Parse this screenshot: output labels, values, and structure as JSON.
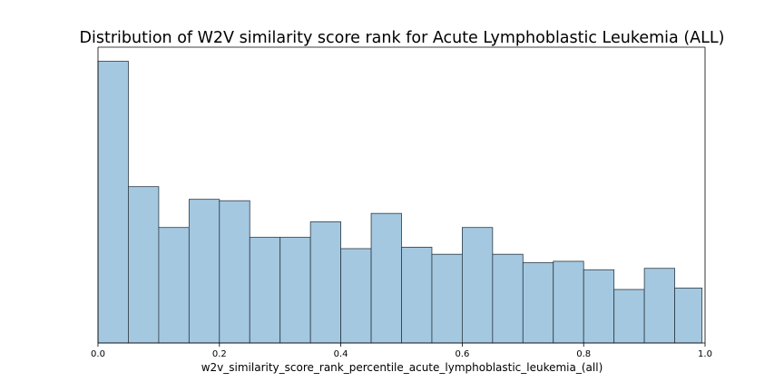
{
  "chart_data": {
    "type": "bar",
    "title": "Distribution of W2V similarity score rank for Acute Lymphoblastic Leukemia (ALL)",
    "xlabel": "w2v_similarity_score_rank_percentile_acute_lymphoblastic_leukemia_(all)",
    "ylabel": "",
    "xlim": [
      0.0,
      1.0
    ],
    "ylim": [
      0,
      1.05
    ],
    "bin_edges": [
      0.0,
      0.05,
      0.1,
      0.15,
      0.2,
      0.25,
      0.3,
      0.35,
      0.4,
      0.45,
      0.5,
      0.55,
      0.6,
      0.65,
      0.7,
      0.75,
      0.8,
      0.85,
      0.9,
      0.95,
      0.995
    ],
    "values": [
      1.0,
      0.555,
      0.41,
      0.51,
      0.505,
      0.375,
      0.375,
      0.43,
      0.335,
      0.46,
      0.34,
      0.315,
      0.41,
      0.315,
      0.285,
      0.29,
      0.26,
      0.19,
      0.265,
      0.195
    ],
    "x_ticks": [
      0.0,
      0.2,
      0.4,
      0.6,
      0.8,
      1.0
    ],
    "x_tick_labels": [
      "0.0",
      "0.2",
      "0.4",
      "0.6",
      "0.8",
      "1.0"
    ],
    "y_ticks_visible": false,
    "grid": false,
    "legend": "none",
    "bar_color": "#a5c8e1",
    "bar_edge_color": "#2b3a44"
  }
}
